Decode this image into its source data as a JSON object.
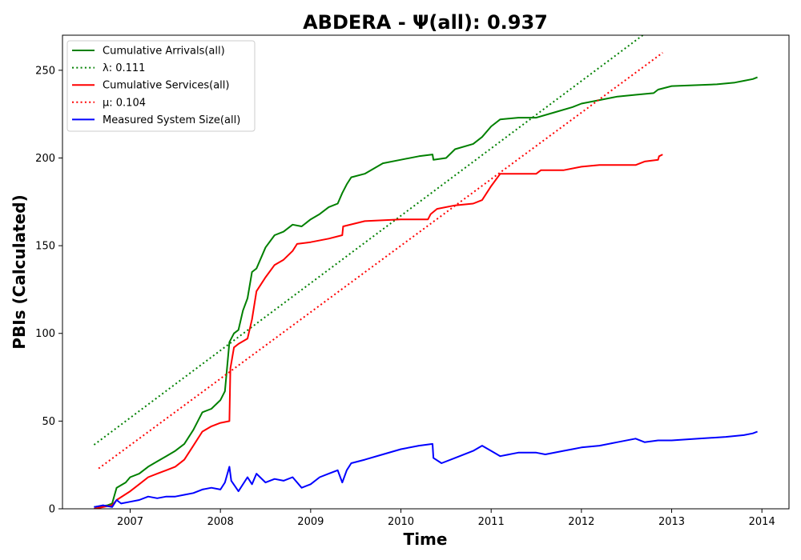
{
  "chart_data": {
    "type": "line",
    "title": "ABDERA -  Ψ(all): 0.937",
    "xlabel": "Time",
    "ylabel": "PBIs (Calculated)",
    "xlim": [
      2006.25,
      2014.3
    ],
    "ylim": [
      0,
      270
    ],
    "x_ticks": [
      2007,
      2008,
      2009,
      2010,
      2011,
      2012,
      2013,
      2014
    ],
    "y_ticks": [
      0,
      50,
      100,
      150,
      200,
      250
    ],
    "grid": false,
    "legend_position": "upper-left",
    "series": [
      {
        "name": "Cumulative Arrivals(all)",
        "style": "solid",
        "color": "#008000",
        "points": [
          [
            2006.6,
            1
          ],
          [
            2006.75,
            2
          ],
          [
            2006.8,
            3
          ],
          [
            2006.85,
            12
          ],
          [
            2006.95,
            15
          ],
          [
            2007.0,
            18
          ],
          [
            2007.1,
            20
          ],
          [
            2007.2,
            24
          ],
          [
            2007.3,
            27
          ],
          [
            2007.4,
            30
          ],
          [
            2007.5,
            33
          ],
          [
            2007.6,
            37
          ],
          [
            2007.7,
            45
          ],
          [
            2007.8,
            55
          ],
          [
            2007.9,
            57
          ],
          [
            2008.0,
            62
          ],
          [
            2008.05,
            67
          ],
          [
            2008.1,
            95
          ],
          [
            2008.15,
            100
          ],
          [
            2008.2,
            102
          ],
          [
            2008.25,
            113
          ],
          [
            2008.3,
            120
          ],
          [
            2008.35,
            135
          ],
          [
            2008.4,
            137
          ],
          [
            2008.5,
            149
          ],
          [
            2008.6,
            156
          ],
          [
            2008.7,
            158
          ],
          [
            2008.8,
            162
          ],
          [
            2008.9,
            161
          ],
          [
            2009.0,
            165
          ],
          [
            2009.1,
            168
          ],
          [
            2009.2,
            172
          ],
          [
            2009.3,
            174
          ],
          [
            2009.35,
            180
          ],
          [
            2009.4,
            185
          ],
          [
            2009.45,
            189
          ],
          [
            2009.6,
            191
          ],
          [
            2009.8,
            197
          ],
          [
            2010.0,
            199
          ],
          [
            2010.2,
            201
          ],
          [
            2010.35,
            202
          ],
          [
            2010.36,
            199
          ],
          [
            2010.5,
            200
          ],
          [
            2010.6,
            205
          ],
          [
            2010.8,
            208
          ],
          [
            2010.9,
            212
          ],
          [
            2011.0,
            218
          ],
          [
            2011.1,
            222
          ],
          [
            2011.3,
            223
          ],
          [
            2011.5,
            223
          ],
          [
            2011.7,
            226
          ],
          [
            2011.9,
            229
          ],
          [
            2012.0,
            231
          ],
          [
            2012.2,
            233
          ],
          [
            2012.4,
            235
          ],
          [
            2012.6,
            236
          ],
          [
            2012.8,
            237
          ],
          [
            2012.85,
            239
          ],
          [
            2013.0,
            241
          ],
          [
            2013.5,
            242
          ],
          [
            2013.7,
            243
          ],
          [
            2013.8,
            244
          ],
          [
            2013.9,
            245
          ],
          [
            2013.95,
            246
          ]
        ]
      },
      {
        "name": "λ: 0.111",
        "style": "dotted",
        "color": "#008000",
        "points": [
          [
            2006.6,
            36.5
          ],
          [
            2012.68,
            270
          ]
        ]
      },
      {
        "name": "Cumulative Services(all)",
        "style": "solid",
        "color": "#ff0000",
        "points": [
          [
            2006.6,
            0
          ],
          [
            2006.8,
            2
          ],
          [
            2006.85,
            5
          ],
          [
            2007.0,
            10
          ],
          [
            2007.1,
            14
          ],
          [
            2007.2,
            18
          ],
          [
            2007.3,
            20
          ],
          [
            2007.4,
            22
          ],
          [
            2007.5,
            24
          ],
          [
            2007.6,
            28
          ],
          [
            2007.7,
            36
          ],
          [
            2007.8,
            44
          ],
          [
            2007.9,
            47
          ],
          [
            2008.0,
            49
          ],
          [
            2008.1,
            50
          ],
          [
            2008.11,
            80
          ],
          [
            2008.15,
            92
          ],
          [
            2008.2,
            94
          ],
          [
            2008.3,
            97
          ],
          [
            2008.35,
            108
          ],
          [
            2008.4,
            124
          ],
          [
            2008.5,
            132
          ],
          [
            2008.6,
            139
          ],
          [
            2008.7,
            142
          ],
          [
            2008.8,
            147
          ],
          [
            2008.85,
            151
          ],
          [
            2009.0,
            152
          ],
          [
            2009.2,
            154
          ],
          [
            2009.35,
            156
          ],
          [
            2009.36,
            161
          ],
          [
            2009.6,
            164
          ],
          [
            2010.0,
            165
          ],
          [
            2010.3,
            165
          ],
          [
            2010.33,
            168
          ],
          [
            2010.4,
            171
          ],
          [
            2010.6,
            173
          ],
          [
            2010.8,
            174
          ],
          [
            2010.9,
            176
          ],
          [
            2011.0,
            184
          ],
          [
            2011.1,
            191
          ],
          [
            2011.3,
            191
          ],
          [
            2011.5,
            191
          ],
          [
            2011.55,
            193
          ],
          [
            2011.8,
            193
          ],
          [
            2012.0,
            195
          ],
          [
            2012.2,
            196
          ],
          [
            2012.6,
            196
          ],
          [
            2012.7,
            198
          ],
          [
            2012.85,
            199
          ],
          [
            2012.86,
            201
          ],
          [
            2012.9,
            202
          ]
        ]
      },
      {
        "name": "μ: 0.104",
        "style": "dotted",
        "color": "#ff0000",
        "points": [
          [
            2006.65,
            23
          ],
          [
            2012.9,
            260
          ]
        ]
      },
      {
        "name": "Measured System Size(all)",
        "style": "solid",
        "color": "#0000ff",
        "points": [
          [
            2006.6,
            1
          ],
          [
            2006.7,
            2
          ],
          [
            2006.8,
            1
          ],
          [
            2006.85,
            5
          ],
          [
            2006.9,
            3
          ],
          [
            2007.0,
            4
          ],
          [
            2007.1,
            5
          ],
          [
            2007.2,
            7
          ],
          [
            2007.3,
            6
          ],
          [
            2007.4,
            7
          ],
          [
            2007.5,
            7
          ],
          [
            2007.6,
            8
          ],
          [
            2007.7,
            9
          ],
          [
            2007.8,
            11
          ],
          [
            2007.9,
            12
          ],
          [
            2008.0,
            11
          ],
          [
            2008.05,
            15
          ],
          [
            2008.1,
            24
          ],
          [
            2008.12,
            16
          ],
          [
            2008.2,
            10
          ],
          [
            2008.3,
            18
          ],
          [
            2008.35,
            14
          ],
          [
            2008.4,
            20
          ],
          [
            2008.5,
            15
          ],
          [
            2008.6,
            17
          ],
          [
            2008.7,
            16
          ],
          [
            2008.8,
            18
          ],
          [
            2008.9,
            12
          ],
          [
            2009.0,
            14
          ],
          [
            2009.1,
            18
          ],
          [
            2009.2,
            20
          ],
          [
            2009.3,
            22
          ],
          [
            2009.35,
            15
          ],
          [
            2009.4,
            22
          ],
          [
            2009.45,
            26
          ],
          [
            2009.6,
            28
          ],
          [
            2009.8,
            31
          ],
          [
            2010.0,
            34
          ],
          [
            2010.2,
            36
          ],
          [
            2010.35,
            37
          ],
          [
            2010.36,
            29
          ],
          [
            2010.45,
            26
          ],
          [
            2010.6,
            29
          ],
          [
            2010.8,
            33
          ],
          [
            2010.9,
            36
          ],
          [
            2011.0,
            33
          ],
          [
            2011.1,
            30
          ],
          [
            2011.3,
            32
          ],
          [
            2011.5,
            32
          ],
          [
            2011.6,
            31
          ],
          [
            2011.8,
            33
          ],
          [
            2011.9,
            34
          ],
          [
            2012.0,
            35
          ],
          [
            2012.2,
            36
          ],
          [
            2012.4,
            38
          ],
          [
            2012.6,
            40
          ],
          [
            2012.7,
            38
          ],
          [
            2012.85,
            39
          ],
          [
            2013.0,
            39
          ],
          [
            2013.3,
            40
          ],
          [
            2013.6,
            41
          ],
          [
            2013.8,
            42
          ],
          [
            2013.9,
            43
          ],
          [
            2013.95,
            44
          ]
        ]
      }
    ]
  }
}
